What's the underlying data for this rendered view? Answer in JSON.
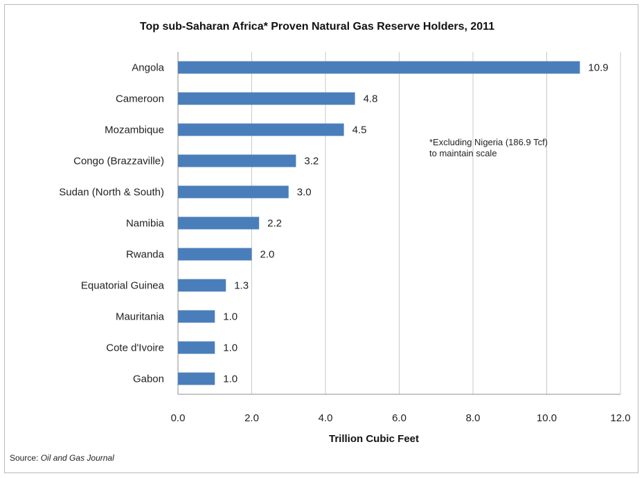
{
  "chart_data": {
    "type": "bar",
    "orientation": "horizontal",
    "title": "Top sub-Saharan Africa* Proven Natural Gas Reserve Holders, 2011",
    "categories": [
      "Angola",
      "Cameroon",
      "Mozambique",
      "Congo (Brazzaville)",
      "Sudan (North & South)",
      "Namibia",
      "Rwanda",
      "Equatorial Guinea",
      "Mauritania",
      "Cote d'Ivoire",
      "Gabon"
    ],
    "values": [
      10.9,
      4.8,
      4.5,
      3.2,
      3.0,
      2.2,
      2.0,
      1.3,
      1.0,
      1.0,
      1.0
    ],
    "value_labels": [
      "10.9",
      "4.8",
      "4.5",
      "3.2",
      "3.0",
      "2.2",
      "2.0",
      "1.3",
      "1.0",
      "1.0",
      "1.0"
    ],
    "xlabel": "Trillion Cubic Feet",
    "ylabel": "",
    "xlim": [
      0,
      12
    ],
    "x_ticks": [
      "0.0",
      "2.0",
      "4.0",
      "6.0",
      "8.0",
      "10.0",
      "12.0"
    ],
    "grid": "vertical",
    "bar_color": "#4a7ebb",
    "annotation": [
      "*Excluding Nigeria (186.9 Tcf)",
      "to maintain scale"
    ]
  },
  "source": {
    "prefix": "Source: ",
    "publication": "Oil and Gas Journal"
  }
}
